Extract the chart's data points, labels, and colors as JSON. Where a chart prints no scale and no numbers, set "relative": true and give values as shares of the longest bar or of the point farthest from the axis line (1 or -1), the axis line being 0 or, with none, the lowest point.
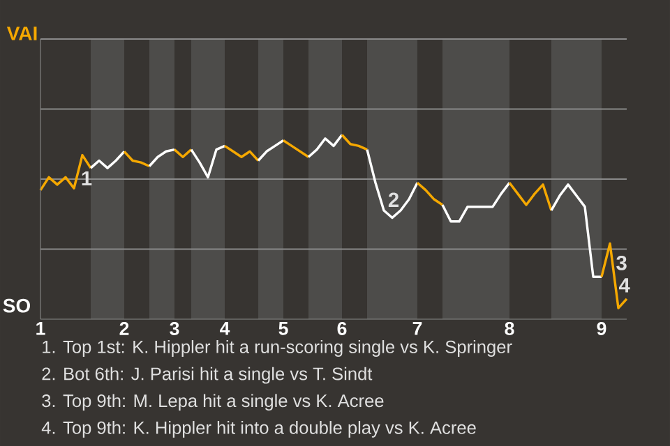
{
  "chart_data": {
    "type": "line",
    "relative": true,
    "categories": [
      "1",
      null,
      null,
      null,
      null,
      null,
      null,
      null,
      null,
      null,
      "2",
      null,
      null,
      null,
      null,
      null,
      "3",
      null,
      null,
      null,
      null,
      null,
      "4",
      null,
      null,
      null,
      null,
      null,
      null,
      "5",
      null,
      null,
      null,
      null,
      null,
      null,
      "6",
      null,
      null,
      null,
      null,
      null,
      null,
      null,
      null,
      "7",
      null,
      null,
      null,
      null,
      null,
      null,
      null,
      null,
      null,
      null,
      "8",
      null,
      null,
      null,
      null,
      null,
      null,
      null,
      null,
      null,
      null,
      "9",
      null,
      null,
      null
    ],
    "series": [
      {
        "color": "#f5a800",
        "values": [
          0.7,
          0.77,
          0.73,
          0.77,
          0.71,
          0.89,
          0.82,
          null,
          null,
          null,
          null,
          null,
          null,
          null,
          null,
          null,
          null,
          null,
          null,
          null,
          null,
          null,
          null,
          null,
          null,
          null,
          null,
          null,
          null,
          null,
          null,
          null,
          null,
          null,
          null,
          null,
          null,
          null,
          null,
          null,
          null,
          null,
          null,
          null,
          null,
          null,
          null,
          null,
          null,
          null,
          null,
          null,
          null,
          null,
          null,
          null,
          null,
          null,
          null,
          null,
          null,
          null,
          null,
          null,
          null,
          null,
          null,
          null,
          null,
          null,
          null
        ]
      },
      {
        "color": "#ffffff",
        "values": [
          null,
          null,
          null,
          null,
          null,
          null,
          0.82,
          0.86,
          0.82,
          0.86,
          0.91,
          null,
          null,
          null,
          null,
          null,
          null,
          null,
          null,
          null,
          null,
          null,
          null,
          null,
          null,
          null,
          null,
          null,
          null,
          null,
          null,
          null,
          null,
          null,
          null,
          null,
          null,
          null,
          null,
          null,
          null,
          null,
          null,
          null,
          null,
          null,
          null,
          null,
          null,
          null,
          null,
          null,
          null,
          null,
          null,
          null,
          null,
          null,
          null,
          null,
          null,
          null,
          null,
          null,
          null,
          null,
          null,
          null,
          null,
          null,
          null
        ]
      },
      {
        "color": "#f5a800",
        "values": [
          null,
          null,
          null,
          null,
          null,
          null,
          null,
          null,
          null,
          null,
          0.91,
          0.86,
          0.85,
          0.83,
          null,
          null,
          null,
          null,
          null,
          null,
          null,
          null,
          null,
          null,
          null,
          null,
          null,
          null,
          null,
          null,
          null,
          null,
          null,
          null,
          null,
          null,
          null,
          null,
          null,
          null,
          null,
          null,
          null,
          null,
          null,
          null,
          null,
          null,
          null,
          null,
          null,
          null,
          null,
          null,
          null,
          null,
          null,
          null,
          null,
          null,
          null,
          null,
          null,
          null,
          null,
          null,
          null,
          null,
          null,
          null,
          null
        ]
      },
      {
        "color": "#ffffff",
        "values": [
          null,
          null,
          null,
          null,
          null,
          null,
          null,
          null,
          null,
          null,
          null,
          null,
          null,
          0.83,
          0.88,
          0.91,
          0.92,
          null,
          null,
          null,
          null,
          null,
          null,
          null,
          null,
          null,
          null,
          null,
          null,
          null,
          null,
          null,
          null,
          null,
          null,
          null,
          null,
          null,
          null,
          null,
          null,
          null,
          null,
          null,
          null,
          null,
          null,
          null,
          null,
          null,
          null,
          null,
          null,
          null,
          null,
          null,
          null,
          null,
          null,
          null,
          null,
          null,
          null,
          null,
          null,
          null,
          null,
          null,
          null,
          null,
          null
        ]
      },
      {
        "color": "#f5a800",
        "values": [
          null,
          null,
          null,
          null,
          null,
          null,
          null,
          null,
          null,
          null,
          null,
          null,
          null,
          null,
          null,
          null,
          0.92,
          0.88,
          0.92,
          null,
          null,
          null,
          null,
          null,
          null,
          null,
          null,
          null,
          null,
          null,
          null,
          null,
          null,
          null,
          null,
          null,
          null,
          null,
          null,
          null,
          null,
          null,
          null,
          null,
          null,
          null,
          null,
          null,
          null,
          null,
          null,
          null,
          null,
          null,
          null,
          null,
          null,
          null,
          null,
          null,
          null,
          null,
          null,
          null,
          null,
          null,
          null,
          null,
          null,
          null,
          null
        ]
      },
      {
        "color": "#ffffff",
        "values": [
          null,
          null,
          null,
          null,
          null,
          null,
          null,
          null,
          null,
          null,
          null,
          null,
          null,
          null,
          null,
          null,
          null,
          null,
          0.92,
          0.85,
          0.77,
          0.92,
          0.94,
          null,
          null,
          null,
          null,
          null,
          null,
          null,
          null,
          null,
          null,
          null,
          null,
          null,
          null,
          null,
          null,
          null,
          null,
          null,
          null,
          null,
          null,
          null,
          null,
          null,
          null,
          null,
          null,
          null,
          null,
          null,
          null,
          null,
          null,
          null,
          null,
          null,
          null,
          null,
          null,
          null,
          null,
          null,
          null,
          null,
          null,
          null,
          null
        ]
      },
      {
        "color": "#f5a800",
        "values": [
          null,
          null,
          null,
          null,
          null,
          null,
          null,
          null,
          null,
          null,
          null,
          null,
          null,
          null,
          null,
          null,
          null,
          null,
          null,
          null,
          null,
          null,
          0.94,
          0.91,
          0.88,
          0.91,
          0.86,
          null,
          null,
          null,
          null,
          null,
          null,
          null,
          null,
          null,
          null,
          null,
          null,
          null,
          null,
          null,
          null,
          null,
          null,
          null,
          null,
          null,
          null,
          null,
          null,
          null,
          null,
          null,
          null,
          null,
          null,
          null,
          null,
          null,
          null,
          null,
          null,
          null,
          null,
          null,
          null,
          null,
          null,
          null,
          null
        ]
      },
      {
        "color": "#ffffff",
        "values": [
          null,
          null,
          null,
          null,
          null,
          null,
          null,
          null,
          null,
          null,
          null,
          null,
          null,
          null,
          null,
          null,
          null,
          null,
          null,
          null,
          null,
          null,
          null,
          null,
          null,
          null,
          0.86,
          0.91,
          0.94,
          0.97,
          null,
          null,
          null,
          null,
          null,
          null,
          null,
          null,
          null,
          null,
          null,
          null,
          null,
          null,
          null,
          null,
          null,
          null,
          null,
          null,
          null,
          null,
          null,
          null,
          null,
          null,
          null,
          null,
          null,
          null,
          null,
          null,
          null,
          null,
          null,
          null,
          null,
          null,
          null,
          null,
          null
        ]
      },
      {
        "color": "#f5a800",
        "values": [
          null,
          null,
          null,
          null,
          null,
          null,
          null,
          null,
          null,
          null,
          null,
          null,
          null,
          null,
          null,
          null,
          null,
          null,
          null,
          null,
          null,
          null,
          null,
          null,
          null,
          null,
          null,
          null,
          null,
          0.97,
          0.94,
          0.91,
          0.88,
          null,
          null,
          null,
          null,
          null,
          null,
          null,
          null,
          null,
          null,
          null,
          null,
          null,
          null,
          null,
          null,
          null,
          null,
          null,
          null,
          null,
          null,
          null,
          null,
          null,
          null,
          null,
          null,
          null,
          null,
          null,
          null,
          null,
          null,
          null,
          null,
          null,
          null
        ]
      },
      {
        "color": "#ffffff",
        "values": [
          null,
          null,
          null,
          null,
          null,
          null,
          null,
          null,
          null,
          null,
          null,
          null,
          null,
          null,
          null,
          null,
          null,
          null,
          null,
          null,
          null,
          null,
          null,
          null,
          null,
          null,
          null,
          null,
          null,
          null,
          null,
          null,
          0.88,
          0.92,
          0.98,
          0.94,
          1,
          null,
          null,
          null,
          null,
          null,
          null,
          null,
          null,
          null,
          null,
          null,
          null,
          null,
          null,
          null,
          null,
          null,
          null,
          null,
          null,
          null,
          null,
          null,
          null,
          null,
          null,
          null,
          null,
          null,
          null,
          null,
          null,
          null,
          null
        ]
      },
      {
        "color": "#f5a800",
        "values": [
          null,
          null,
          null,
          null,
          null,
          null,
          null,
          null,
          null,
          null,
          null,
          null,
          null,
          null,
          null,
          null,
          null,
          null,
          null,
          null,
          null,
          null,
          null,
          null,
          null,
          null,
          null,
          null,
          null,
          null,
          null,
          null,
          null,
          null,
          null,
          null,
          1,
          0.95,
          0.94,
          0.92,
          null,
          null,
          null,
          null,
          null,
          null,
          null,
          null,
          null,
          null,
          null,
          null,
          null,
          null,
          null,
          null,
          null,
          null,
          null,
          null,
          null,
          null,
          null,
          null,
          null,
          null,
          null,
          null,
          null,
          null,
          null
        ]
      },
      {
        "color": "#ffffff",
        "values": [
          null,
          null,
          null,
          null,
          null,
          null,
          null,
          null,
          null,
          null,
          null,
          null,
          null,
          null,
          null,
          null,
          null,
          null,
          null,
          null,
          null,
          null,
          null,
          null,
          null,
          null,
          null,
          null,
          null,
          null,
          null,
          null,
          null,
          null,
          null,
          null,
          null,
          null,
          null,
          0.92,
          0.74,
          0.59,
          0.55,
          0.59,
          0.65,
          0.74,
          null,
          null,
          null,
          null,
          null,
          null,
          null,
          null,
          null,
          null,
          null,
          null,
          null,
          null,
          null,
          null,
          null,
          null,
          null,
          null,
          null,
          null,
          null,
          null,
          null
        ]
      },
      {
        "color": "#f5a800",
        "values": [
          null,
          null,
          null,
          null,
          null,
          null,
          null,
          null,
          null,
          null,
          null,
          null,
          null,
          null,
          null,
          null,
          null,
          null,
          null,
          null,
          null,
          null,
          null,
          null,
          null,
          null,
          null,
          null,
          null,
          null,
          null,
          null,
          null,
          null,
          null,
          null,
          null,
          null,
          null,
          null,
          null,
          null,
          null,
          null,
          null,
          0.74,
          0.7,
          0.65,
          0.62,
          null,
          null,
          null,
          null,
          null,
          null,
          null,
          null,
          null,
          null,
          null,
          null,
          null,
          null,
          null,
          null,
          null,
          null,
          null,
          null,
          null,
          null
        ]
      },
      {
        "color": "#ffffff",
        "values": [
          null,
          null,
          null,
          null,
          null,
          null,
          null,
          null,
          null,
          null,
          null,
          null,
          null,
          null,
          null,
          null,
          null,
          null,
          null,
          null,
          null,
          null,
          null,
          null,
          null,
          null,
          null,
          null,
          null,
          null,
          null,
          null,
          null,
          null,
          null,
          null,
          null,
          null,
          null,
          null,
          null,
          null,
          null,
          null,
          null,
          null,
          null,
          null,
          0.62,
          0.53,
          0.53,
          0.61,
          0.61,
          0.61,
          0.61,
          0.68,
          0.74,
          null,
          null,
          null,
          null,
          null,
          null,
          null,
          null,
          null,
          null,
          null,
          null,
          null,
          null
        ]
      },
      {
        "color": "#f5a800",
        "values": [
          null,
          null,
          null,
          null,
          null,
          null,
          null,
          null,
          null,
          null,
          null,
          null,
          null,
          null,
          null,
          null,
          null,
          null,
          null,
          null,
          null,
          null,
          null,
          null,
          null,
          null,
          null,
          null,
          null,
          null,
          null,
          null,
          null,
          null,
          null,
          null,
          null,
          null,
          null,
          null,
          null,
          null,
          null,
          null,
          null,
          null,
          null,
          null,
          null,
          null,
          null,
          null,
          null,
          null,
          null,
          null,
          0.74,
          0.68,
          0.62,
          0.68,
          0.73,
          0.59,
          null,
          null,
          null,
          null,
          null,
          null,
          null,
          null,
          null
        ]
      },
      {
        "color": "#ffffff",
        "values": [
          null,
          null,
          null,
          null,
          null,
          null,
          null,
          null,
          null,
          null,
          null,
          null,
          null,
          null,
          null,
          null,
          null,
          null,
          null,
          null,
          null,
          null,
          null,
          null,
          null,
          null,
          null,
          null,
          null,
          null,
          null,
          null,
          null,
          null,
          null,
          null,
          null,
          null,
          null,
          null,
          null,
          null,
          null,
          null,
          null,
          null,
          null,
          null,
          null,
          null,
          null,
          null,
          null,
          null,
          null,
          null,
          null,
          null,
          null,
          null,
          null,
          0.59,
          0.67,
          0.73,
          0.67,
          0.61,
          0.23,
          0.23,
          null,
          null,
          null
        ]
      },
      {
        "color": "#f5a800",
        "values": [
          null,
          null,
          null,
          null,
          null,
          null,
          null,
          null,
          null,
          null,
          null,
          null,
          null,
          null,
          null,
          null,
          null,
          null,
          null,
          null,
          null,
          null,
          null,
          null,
          null,
          null,
          null,
          null,
          null,
          null,
          null,
          null,
          null,
          null,
          null,
          null,
          null,
          null,
          null,
          null,
          null,
          null,
          null,
          null,
          null,
          null,
          null,
          null,
          null,
          null,
          null,
          null,
          null,
          null,
          null,
          null,
          null,
          null,
          null,
          null,
          null,
          null,
          null,
          null,
          null,
          null,
          null,
          0.23,
          0.41,
          0.06,
          0.11
        ]
      }
    ],
    "ref_lines": [
      {
        "axis": "y",
        "value": 0.38,
        "color": "#8a8a8a"
      },
      {
        "axis": "y",
        "value": 0.76,
        "color": "#8a8a8a"
      },
      {
        "axis": "y",
        "value": 1.14,
        "color": "#8a8a8a"
      },
      {
        "axis": "y",
        "value": 1.52,
        "color": "#8a8a8a"
      }
    ],
    "annotations": [
      "VAI",
      "SO",
      "1",
      "2",
      "3",
      "4",
      "1. Top 1st: K. Hippler hit a run-scoring single vs K. Springer",
      "2. Bot 6th: J. Parisi hit a single vs T. Sindt",
      "3. Top 9th: M. Lepa hit a single vs K. Acree",
      "4. Top 9th: K. Hippler hit into a double play vs K. Acree"
    ]
  }
}
